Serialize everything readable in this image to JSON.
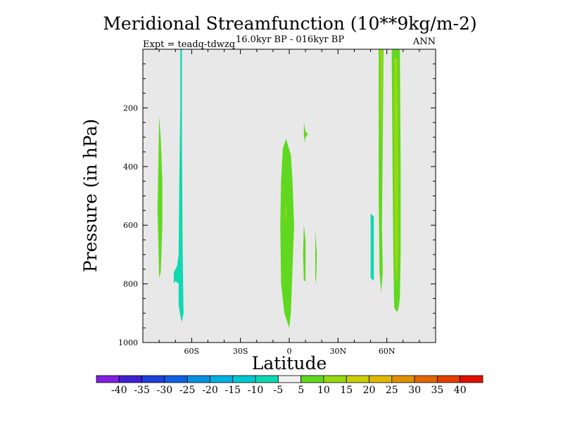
{
  "chart_data": {
    "type": "heatmap",
    "title": "Meridional Streamfunction (10**9kg/m-2)",
    "subtitle": "16.0kyr BP - 016kyr BP",
    "left_label": "Expt = teadq-tdwzq",
    "right_label": "ANN",
    "xlabel": "Latitude",
    "ylabel": "Pressure (in hPa)",
    "xlim": [
      -90,
      90
    ],
    "ylim": [
      0,
      1000
    ],
    "y_inverted": true,
    "x_ticks": [
      {
        "value": -60,
        "label": "60S"
      },
      {
        "value": -30,
        "label": "30S"
      },
      {
        "value": 0,
        "label": "0"
      },
      {
        "value": 30,
        "label": "30N"
      },
      {
        "value": 60,
        "label": "60N"
      }
    ],
    "y_ticks": [
      {
        "value": 200,
        "label": "200"
      },
      {
        "value": 400,
        "label": "400"
      },
      {
        "value": 600,
        "label": "600"
      },
      {
        "value": 800,
        "label": "800"
      },
      {
        "value": 1000,
        "label": "1000"
      }
    ],
    "background_color": "#e8e8e8",
    "colorbar": {
      "levels": [
        "-40",
        "-35",
        "-30",
        "-25",
        "-20",
        "-15",
        "-10",
        "-5",
        "5",
        "10",
        "15",
        "20",
        "25",
        "30",
        "35",
        "40"
      ],
      "colors": [
        "#8020e0",
        "#4020d0",
        "#2040d8",
        "#1060e0",
        "#0890e0",
        "#00b0e0",
        "#00c8d0",
        "#10d8b0",
        "#f0f0f0",
        "#60d820",
        "#98d810",
        "#c8d000",
        "#e0b800",
        "#e09000",
        "#e06800",
        "#e04000",
        "#e01000"
      ]
    },
    "regions": [
      {
        "name": "sh-high-lat-negative",
        "value": -7.5,
        "color": "#10d8b0",
        "points": [
          [
            -67,
            0
          ],
          [
            -66,
            0
          ],
          [
            -66,
            300
          ],
          [
            -65.5,
            700
          ],
          [
            -65,
            900
          ],
          [
            -66,
            930
          ],
          [
            -67,
            910
          ],
          [
            -68,
            870
          ],
          [
            -68,
            800
          ],
          [
            -70,
            790
          ],
          [
            -71,
            800
          ],
          [
            -71,
            760
          ],
          [
            -69,
            740
          ],
          [
            -68,
            700
          ],
          [
            -67.5,
            400
          ],
          [
            -67,
            200
          ]
        ]
      },
      {
        "name": "sh-midlat-positive",
        "value": 7.5,
        "color": "#60d820",
        "points": [
          [
            -80,
            230
          ],
          [
            -79,
            300
          ],
          [
            -78,
            450
          ],
          [
            -78,
            600
          ],
          [
            -79,
            760
          ],
          [
            -80,
            780
          ],
          [
            -80.5,
            650
          ],
          [
            -81,
            550
          ],
          [
            -80.5,
            400
          ]
        ]
      },
      {
        "name": "equatorial-positive",
        "value": 7.5,
        "color": "#60d820",
        "points": [
          [
            -2,
            305
          ],
          [
            -4,
            340
          ],
          [
            -5,
            450
          ],
          [
            -5.5,
            600
          ],
          [
            -5,
            800
          ],
          [
            -3,
            900
          ],
          [
            0,
            950
          ],
          [
            1,
            900
          ],
          [
            2,
            750
          ],
          [
            3,
            600
          ],
          [
            2,
            450
          ],
          [
            1,
            360
          ]
        ]
      },
      {
        "name": "equatorial-core",
        "value": 12.5,
        "color": "#98d810",
        "points": [
          [
            -2,
            520
          ],
          [
            -1.5,
            560
          ],
          [
            -2,
            590
          ],
          [
            -2.5,
            560
          ]
        ]
      },
      {
        "name": "nh-upper-positive",
        "value": 7.5,
        "color": "#60d820",
        "points": [
          [
            9,
            250
          ],
          [
            10,
            280
          ],
          [
            11.5,
            290
          ],
          [
            10,
            300
          ],
          [
            9.5,
            320
          ],
          [
            9,
            290
          ]
        ]
      },
      {
        "name": "nh-tropics-positive-a",
        "value": 7.5,
        "color": "#60d820",
        "points": [
          [
            9,
            600
          ],
          [
            10,
            650
          ],
          [
            10,
            790
          ],
          [
            9,
            790
          ],
          [
            8.5,
            700
          ]
        ]
      },
      {
        "name": "nh-tropics-positive-b",
        "value": 7.5,
        "color": "#60d820",
        "points": [
          [
            16,
            620
          ],
          [
            17,
            700
          ],
          [
            16.5,
            800
          ],
          [
            16,
            780
          ]
        ]
      },
      {
        "name": "nh-high-lat-negative",
        "value": -7.5,
        "color": "#10d8b0",
        "points": [
          [
            50,
            560
          ],
          [
            52,
            570
          ],
          [
            52,
            790
          ],
          [
            50,
            780
          ]
        ]
      },
      {
        "name": "nh-high-lat-positive-a",
        "value": 7.5,
        "color": "#60d820",
        "points": [
          [
            55,
            0
          ],
          [
            58,
            0
          ],
          [
            57.5,
            300
          ],
          [
            57,
            600
          ],
          [
            57.5,
            760
          ],
          [
            56.5,
            830
          ],
          [
            55.5,
            760
          ],
          [
            55,
            500
          ]
        ]
      },
      {
        "name": "nh-high-lat-core-a",
        "value": 12.5,
        "color": "#98d810",
        "points": [
          [
            56,
            0
          ],
          [
            57.5,
            0
          ],
          [
            57,
            200
          ],
          [
            56.5,
            360
          ],
          [
            56,
            200
          ]
        ]
      },
      {
        "name": "nh-high-lat-positive-b",
        "value": 7.5,
        "color": "#60d820",
        "points": [
          [
            63,
            0
          ],
          [
            68,
            0
          ],
          [
            68.5,
            400
          ],
          [
            68.5,
            700
          ],
          [
            68,
            850
          ],
          [
            67,
            890
          ],
          [
            66,
            895
          ],
          [
            64.5,
            880
          ],
          [
            64,
            700
          ],
          [
            63.5,
            400
          ]
        ]
      },
      {
        "name": "nh-high-lat-core-b",
        "value": 12.5,
        "color": "#98d810",
        "points": [
          [
            64.5,
            30
          ],
          [
            66.5,
            30
          ],
          [
            67,
            400
          ],
          [
            67,
            700
          ],
          [
            66.5,
            780
          ],
          [
            65.5,
            790
          ],
          [
            65,
            700
          ],
          [
            64.5,
            400
          ]
        ]
      }
    ]
  }
}
